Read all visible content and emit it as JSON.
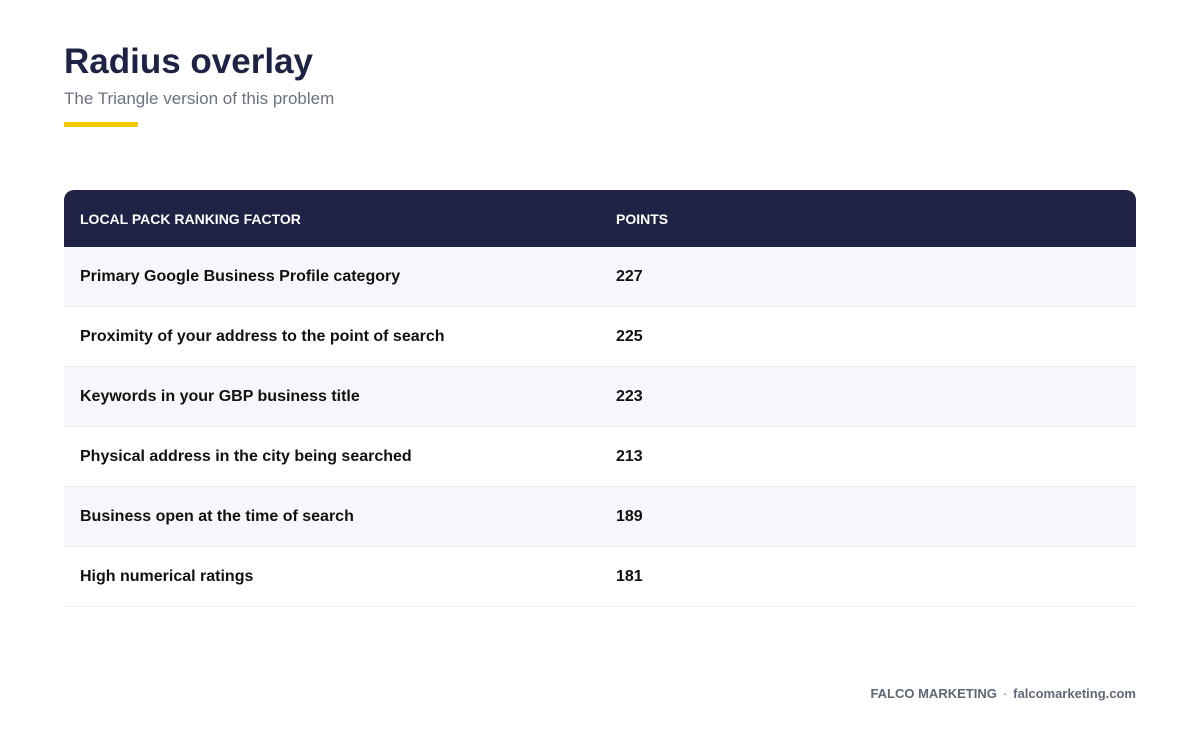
{
  "header": {
    "title": "Radius overlay",
    "subtitle": "The Triangle version of this problem"
  },
  "colors": {
    "accent": "#f5c800",
    "header_bg": "#1f2244"
  },
  "table": {
    "columns": [
      "LOCAL PACK RANKING FACTOR",
      "POINTS"
    ],
    "rows": [
      {
        "factor": "Primary Google Business Profile category",
        "points": "227"
      },
      {
        "factor": "Proximity of your address to the point of search",
        "points": "225"
      },
      {
        "factor": "Keywords in your GBP business title",
        "points": "223"
      },
      {
        "factor": "Physical address in the city being searched",
        "points": "213"
      },
      {
        "factor": "Business open at the time of search",
        "points": "189"
      },
      {
        "factor": "High numerical ratings",
        "points": "181"
      }
    ]
  },
  "footer": {
    "brand": "FALCO MARKETING",
    "separator": "·",
    "website": "falcomarketing.com"
  }
}
